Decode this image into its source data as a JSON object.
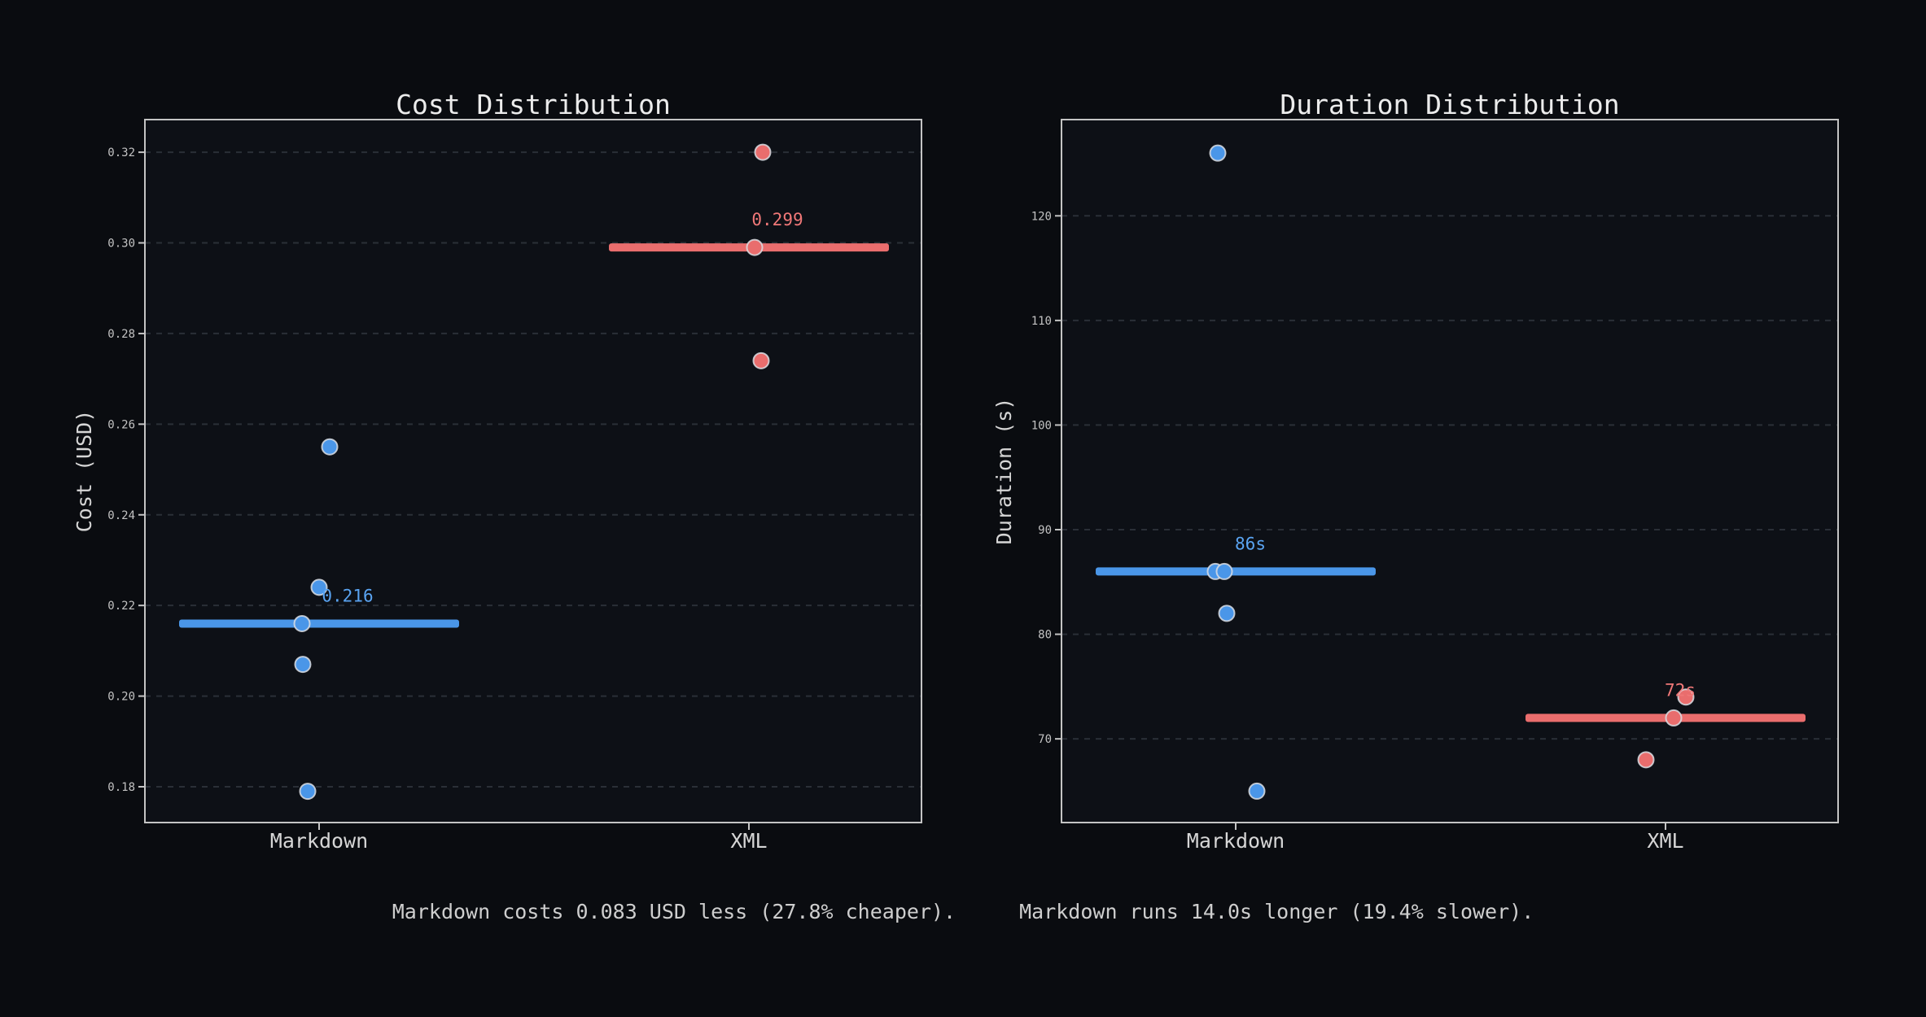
{
  "figure": {
    "background": "#0a0c10",
    "axes_background": "#0d1016",
    "spine_color": "#c4c4c4",
    "grid_color": "#2a2f37",
    "tick_label_color": "#c2c2c2",
    "category_label_color": "#d6d6d6",
    "dot_edge_color": "#d9dde3",
    "accent_blue": "#4a96e8",
    "accent_red": "#e96d6d"
  },
  "summary": {
    "cost_text": "Markdown costs 0.083 USD less (27.8% cheaper).",
    "duration_text": "Markdown runs 14.0s longer (19.4% slower)."
  },
  "chart_data": [
    {
      "type": "strip",
      "title": "Cost Distribution",
      "ylabel": "Cost (USD)",
      "categories": [
        "Markdown",
        "XML"
      ],
      "ylim": [
        0.1721,
        0.3272
      ],
      "yticks": [
        0.18,
        0.2,
        0.22,
        0.24,
        0.26,
        0.28,
        0.3,
        0.32
      ],
      "ytick_labels": [
        "0.18",
        "0.20",
        "0.22",
        "0.24",
        "0.26",
        "0.28",
        "0.30",
        "0.32"
      ],
      "grid": true,
      "series": [
        {
          "name": "Markdown",
          "color": "#4a96e8",
          "label_color": "#5aa4f2",
          "median": 0.216,
          "median_label": "0.216",
          "points": [
            {
              "v": 0.255,
              "dx": 13
            },
            {
              "v": 0.224,
              "dx": 0
            },
            {
              "v": 0.216,
              "dx": -21
            },
            {
              "v": 0.207,
              "dx": -20
            },
            {
              "v": 0.179,
              "dx": -14
            }
          ]
        },
        {
          "name": "XML",
          "color": "#e96d6d",
          "label_color": "#f07878",
          "median": 0.299,
          "median_label": "0.299",
          "points": [
            {
              "v": 0.32,
              "dx": 17
            },
            {
              "v": 0.299,
              "dx": 7
            },
            {
              "v": 0.274,
              "dx": 15
            }
          ]
        }
      ]
    },
    {
      "type": "strip",
      "title": "Duration Distribution",
      "ylabel": "Duration (s)",
      "categories": [
        "Markdown",
        "XML"
      ],
      "ylim": [
        62.0,
        129.2
      ],
      "yticks": [
        70,
        80,
        90,
        100,
        110,
        120
      ],
      "ytick_labels": [
        "70",
        "80",
        "90",
        "100",
        "110",
        "120"
      ],
      "grid": true,
      "series": [
        {
          "name": "Markdown",
          "color": "#4a96e8",
          "label_color": "#5aa4f2",
          "median": 86,
          "median_label": "86s",
          "points": [
            {
              "v": 126,
              "dx": -22
            },
            {
              "v": 86,
              "dx": -25
            },
            {
              "v": 86,
              "dx": -14
            },
            {
              "v": 82,
              "dx": -11
            },
            {
              "v": 65,
              "dx": 26
            }
          ]
        },
        {
          "name": "XML",
          "color": "#e96d6d",
          "label_color": "#f07878",
          "median": 72,
          "median_label": "72s",
          "points": [
            {
              "v": 74,
              "dx": 25
            },
            {
              "v": 72,
              "dx": 10
            },
            {
              "v": 68,
              "dx": -24
            }
          ]
        }
      ]
    }
  ]
}
